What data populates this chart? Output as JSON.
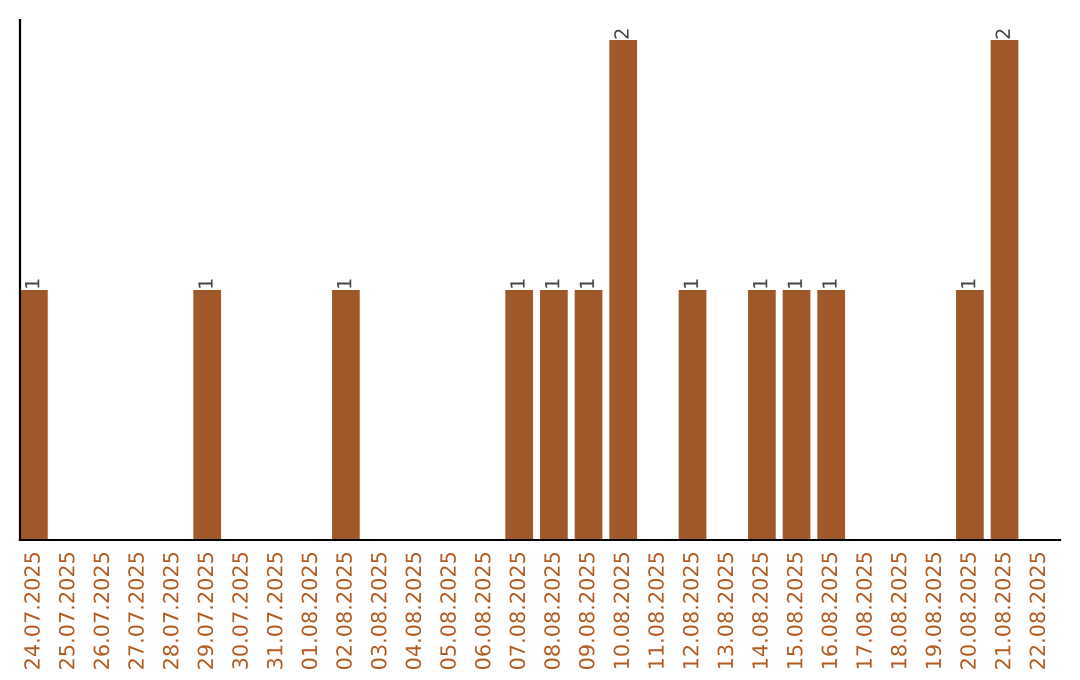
{
  "chart_data": {
    "type": "bar",
    "categories": [
      "24.07.2025",
      "25.07.2025",
      "26.07.2025",
      "27.07.2025",
      "28.07.2025",
      "29.07.2025",
      "30.07.2025",
      "31.07.2025",
      "01.08.2025",
      "02.08.2025",
      "03.08.2025",
      "04.08.2025",
      "05.08.2025",
      "06.08.2025",
      "07.08.2025",
      "08.08.2025",
      "09.08.2025",
      "10.08.2025",
      "11.08.2025",
      "12.08.2025",
      "13.08.2025",
      "14.08.2025",
      "15.08.2025",
      "16.08.2025",
      "17.08.2025",
      "18.08.2025",
      "19.08.2025",
      "20.08.2025",
      "21.08.2025",
      "22.08.2025"
    ],
    "values": [
      1,
      0,
      0,
      0,
      0,
      1,
      0,
      0,
      0,
      1,
      0,
      0,
      0,
      0,
      1,
      1,
      1,
      2,
      0,
      1,
      0,
      1,
      1,
      1,
      0,
      0,
      0,
      1,
      2,
      0
    ],
    "value_labels": [
      "1",
      null,
      null,
      null,
      null,
      "1",
      null,
      null,
      null,
      "1",
      null,
      null,
      null,
      null,
      "1",
      "1",
      "1",
      "2",
      null,
      "1",
      null,
      "1",
      "1",
      "1",
      null,
      null,
      null,
      "1",
      "2",
      null
    ],
    "color": "#a0582a"
  }
}
